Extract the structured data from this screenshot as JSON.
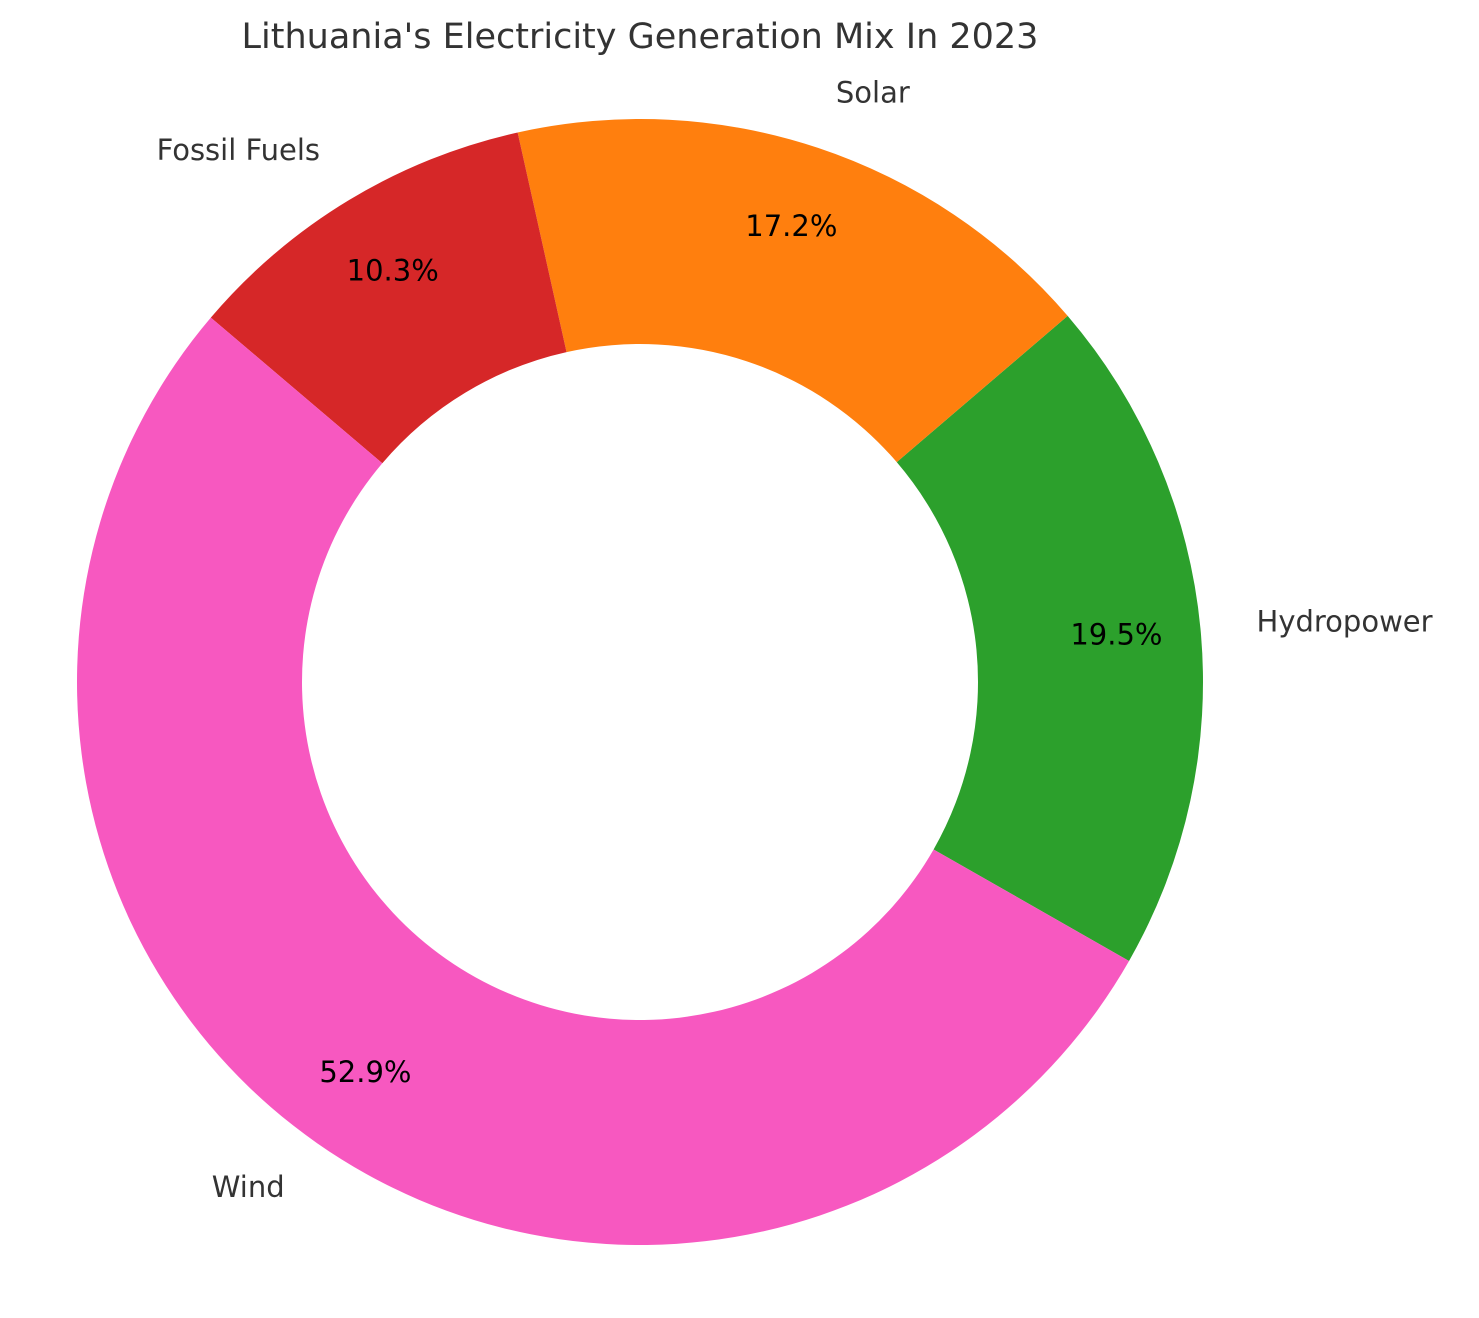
{
  "chart_data": {
    "type": "donut",
    "title": "Lithuania's Electricity Generation Mix In 2023",
    "categories": [
      "Hydropower",
      "Solar",
      "Fossil Fuels",
      "Wind"
    ],
    "values": [
      19.5,
      17.2,
      10.3,
      52.9
    ],
    "value_labels": [
      "19.5%",
      "17.2%",
      "10.3%",
      "52.9%"
    ],
    "colors": [
      "#2ca02c",
      "#ff7f0e",
      "#d62728",
      "#f758c0"
    ]
  }
}
